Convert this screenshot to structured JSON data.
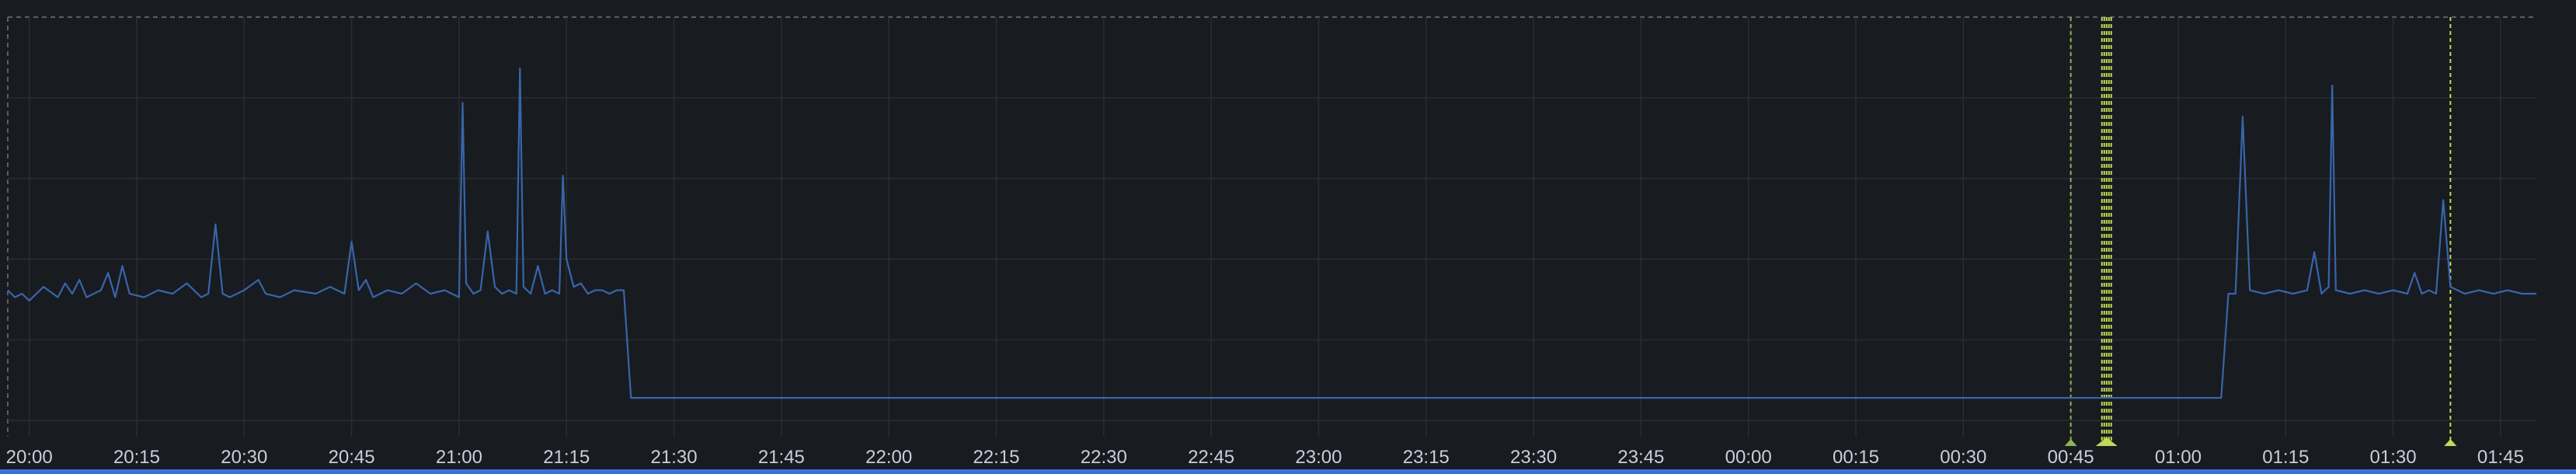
{
  "chart_data": {
    "type": "line",
    "title": "",
    "xlabel": "",
    "ylabel": "",
    "x_range": [
      "19:57",
      "01:50"
    ],
    "x_ticks": [
      "20:00",
      "20:15",
      "20:30",
      "20:45",
      "21:00",
      "21:15",
      "21:30",
      "21:45",
      "22:00",
      "22:15",
      "22:30",
      "22:45",
      "23:00",
      "23:15",
      "23:30",
      "23:45",
      "00:00",
      "00:15",
      "00:30",
      "00:45",
      "01:00",
      "01:15",
      "01:30",
      "01:45"
    ],
    "grid": true,
    "legend": "none",
    "series_color": "#3865ab",
    "annotation_color": "#c3d857",
    "annotation_color_dim": "#8fb455",
    "series": [
      {
        "baseline_high": 0.3,
        "baseline_low": 0.0,
        "points": [
          [
            "19:57",
            0.31
          ],
          [
            "19:58",
            0.29
          ],
          [
            "19:59",
            0.3
          ],
          [
            "20:00",
            0.28
          ],
          [
            "20:02",
            0.32
          ],
          [
            "20:04",
            0.29
          ],
          [
            "20:05",
            0.33
          ],
          [
            "20:06",
            0.3
          ],
          [
            "20:07",
            0.34
          ],
          [
            "20:08",
            0.29
          ],
          [
            "20:09",
            0.3
          ],
          [
            "20:10",
            0.31
          ],
          [
            "20:11",
            0.36
          ],
          [
            "20:12",
            0.29
          ],
          [
            "20:13",
            0.38
          ],
          [
            "20:14",
            0.3
          ],
          [
            "20:16",
            0.29
          ],
          [
            "20:18",
            0.31
          ],
          [
            "20:20",
            0.3
          ],
          [
            "20:22",
            0.33
          ],
          [
            "20:24",
            0.29
          ],
          [
            "20:25",
            0.3
          ],
          [
            "20:26",
            0.5
          ],
          [
            "20:27",
            0.3
          ],
          [
            "20:28",
            0.29
          ],
          [
            "20:30",
            0.31
          ],
          [
            "20:32",
            0.34
          ],
          [
            "20:33",
            0.3
          ],
          [
            "20:35",
            0.29
          ],
          [
            "20:37",
            0.31
          ],
          [
            "20:40",
            0.3
          ],
          [
            "20:42",
            0.32
          ],
          [
            "20:44",
            0.3
          ],
          [
            "20:45",
            0.45
          ],
          [
            "20:46",
            0.31
          ],
          [
            "20:47",
            0.34
          ],
          [
            "20:48",
            0.29
          ],
          [
            "20:50",
            0.31
          ],
          [
            "20:52",
            0.3
          ],
          [
            "20:54",
            0.33
          ],
          [
            "20:56",
            0.3
          ],
          [
            "20:58",
            0.31
          ],
          [
            "21:00",
            0.29
          ],
          [
            "21:00.5",
            0.85
          ],
          [
            "21:01",
            0.33
          ],
          [
            "21:02",
            0.3
          ],
          [
            "21:03",
            0.31
          ],
          [
            "21:04",
            0.48
          ],
          [
            "21:05",
            0.32
          ],
          [
            "21:06",
            0.3
          ],
          [
            "21:07",
            0.31
          ],
          [
            "21:08",
            0.3
          ],
          [
            "21:08.5",
            0.95
          ],
          [
            "21:09",
            0.32
          ],
          [
            "21:10",
            0.3
          ],
          [
            "21:11",
            0.38
          ],
          [
            "21:12",
            0.3
          ],
          [
            "21:13",
            0.31
          ],
          [
            "21:14",
            0.3
          ],
          [
            "21:14.5",
            0.64
          ],
          [
            "21:15",
            0.4
          ],
          [
            "21:16",
            0.32
          ],
          [
            "21:17",
            0.33
          ],
          [
            "21:18",
            0.3
          ],
          [
            "21:19",
            0.31
          ],
          [
            "21:20",
            0.31
          ],
          [
            "21:21",
            0.3
          ],
          [
            "21:22",
            0.31
          ],
          [
            "21:23",
            0.31
          ],
          [
            "21:24",
            0.0
          ],
          [
            "01:06",
            0.0
          ],
          [
            "01:07",
            0.3
          ],
          [
            "01:08",
            0.3
          ],
          [
            "01:09",
            0.81
          ],
          [
            "01:10",
            0.31
          ],
          [
            "01:12",
            0.3
          ],
          [
            "01:14",
            0.31
          ],
          [
            "01:16",
            0.3
          ],
          [
            "01:18",
            0.31
          ],
          [
            "01:19",
            0.42
          ],
          [
            "01:20",
            0.3
          ],
          [
            "01:21",
            0.32
          ],
          [
            "01:21.5",
            0.9
          ],
          [
            "01:22",
            0.31
          ],
          [
            "01:24",
            0.3
          ],
          [
            "01:26",
            0.31
          ],
          [
            "01:28",
            0.3
          ],
          [
            "01:30",
            0.31
          ],
          [
            "01:32",
            0.3
          ],
          [
            "01:33",
            0.36
          ],
          [
            "01:34",
            0.3
          ],
          [
            "01:35",
            0.31
          ],
          [
            "01:36",
            0.3
          ],
          [
            "01:37",
            0.57
          ],
          [
            "01:38",
            0.32
          ],
          [
            "01:40",
            0.3
          ],
          [
            "01:42",
            0.31
          ],
          [
            "01:44",
            0.3
          ],
          [
            "01:46",
            0.31
          ],
          [
            "01:48",
            0.3
          ],
          [
            "01:50",
            0.3
          ]
        ]
      }
    ],
    "annotations": [
      {
        "time": "00:45",
        "style": "single"
      },
      {
        "time": "00:50",
        "style": "range"
      },
      {
        "time": "01:38",
        "style": "single"
      }
    ]
  }
}
